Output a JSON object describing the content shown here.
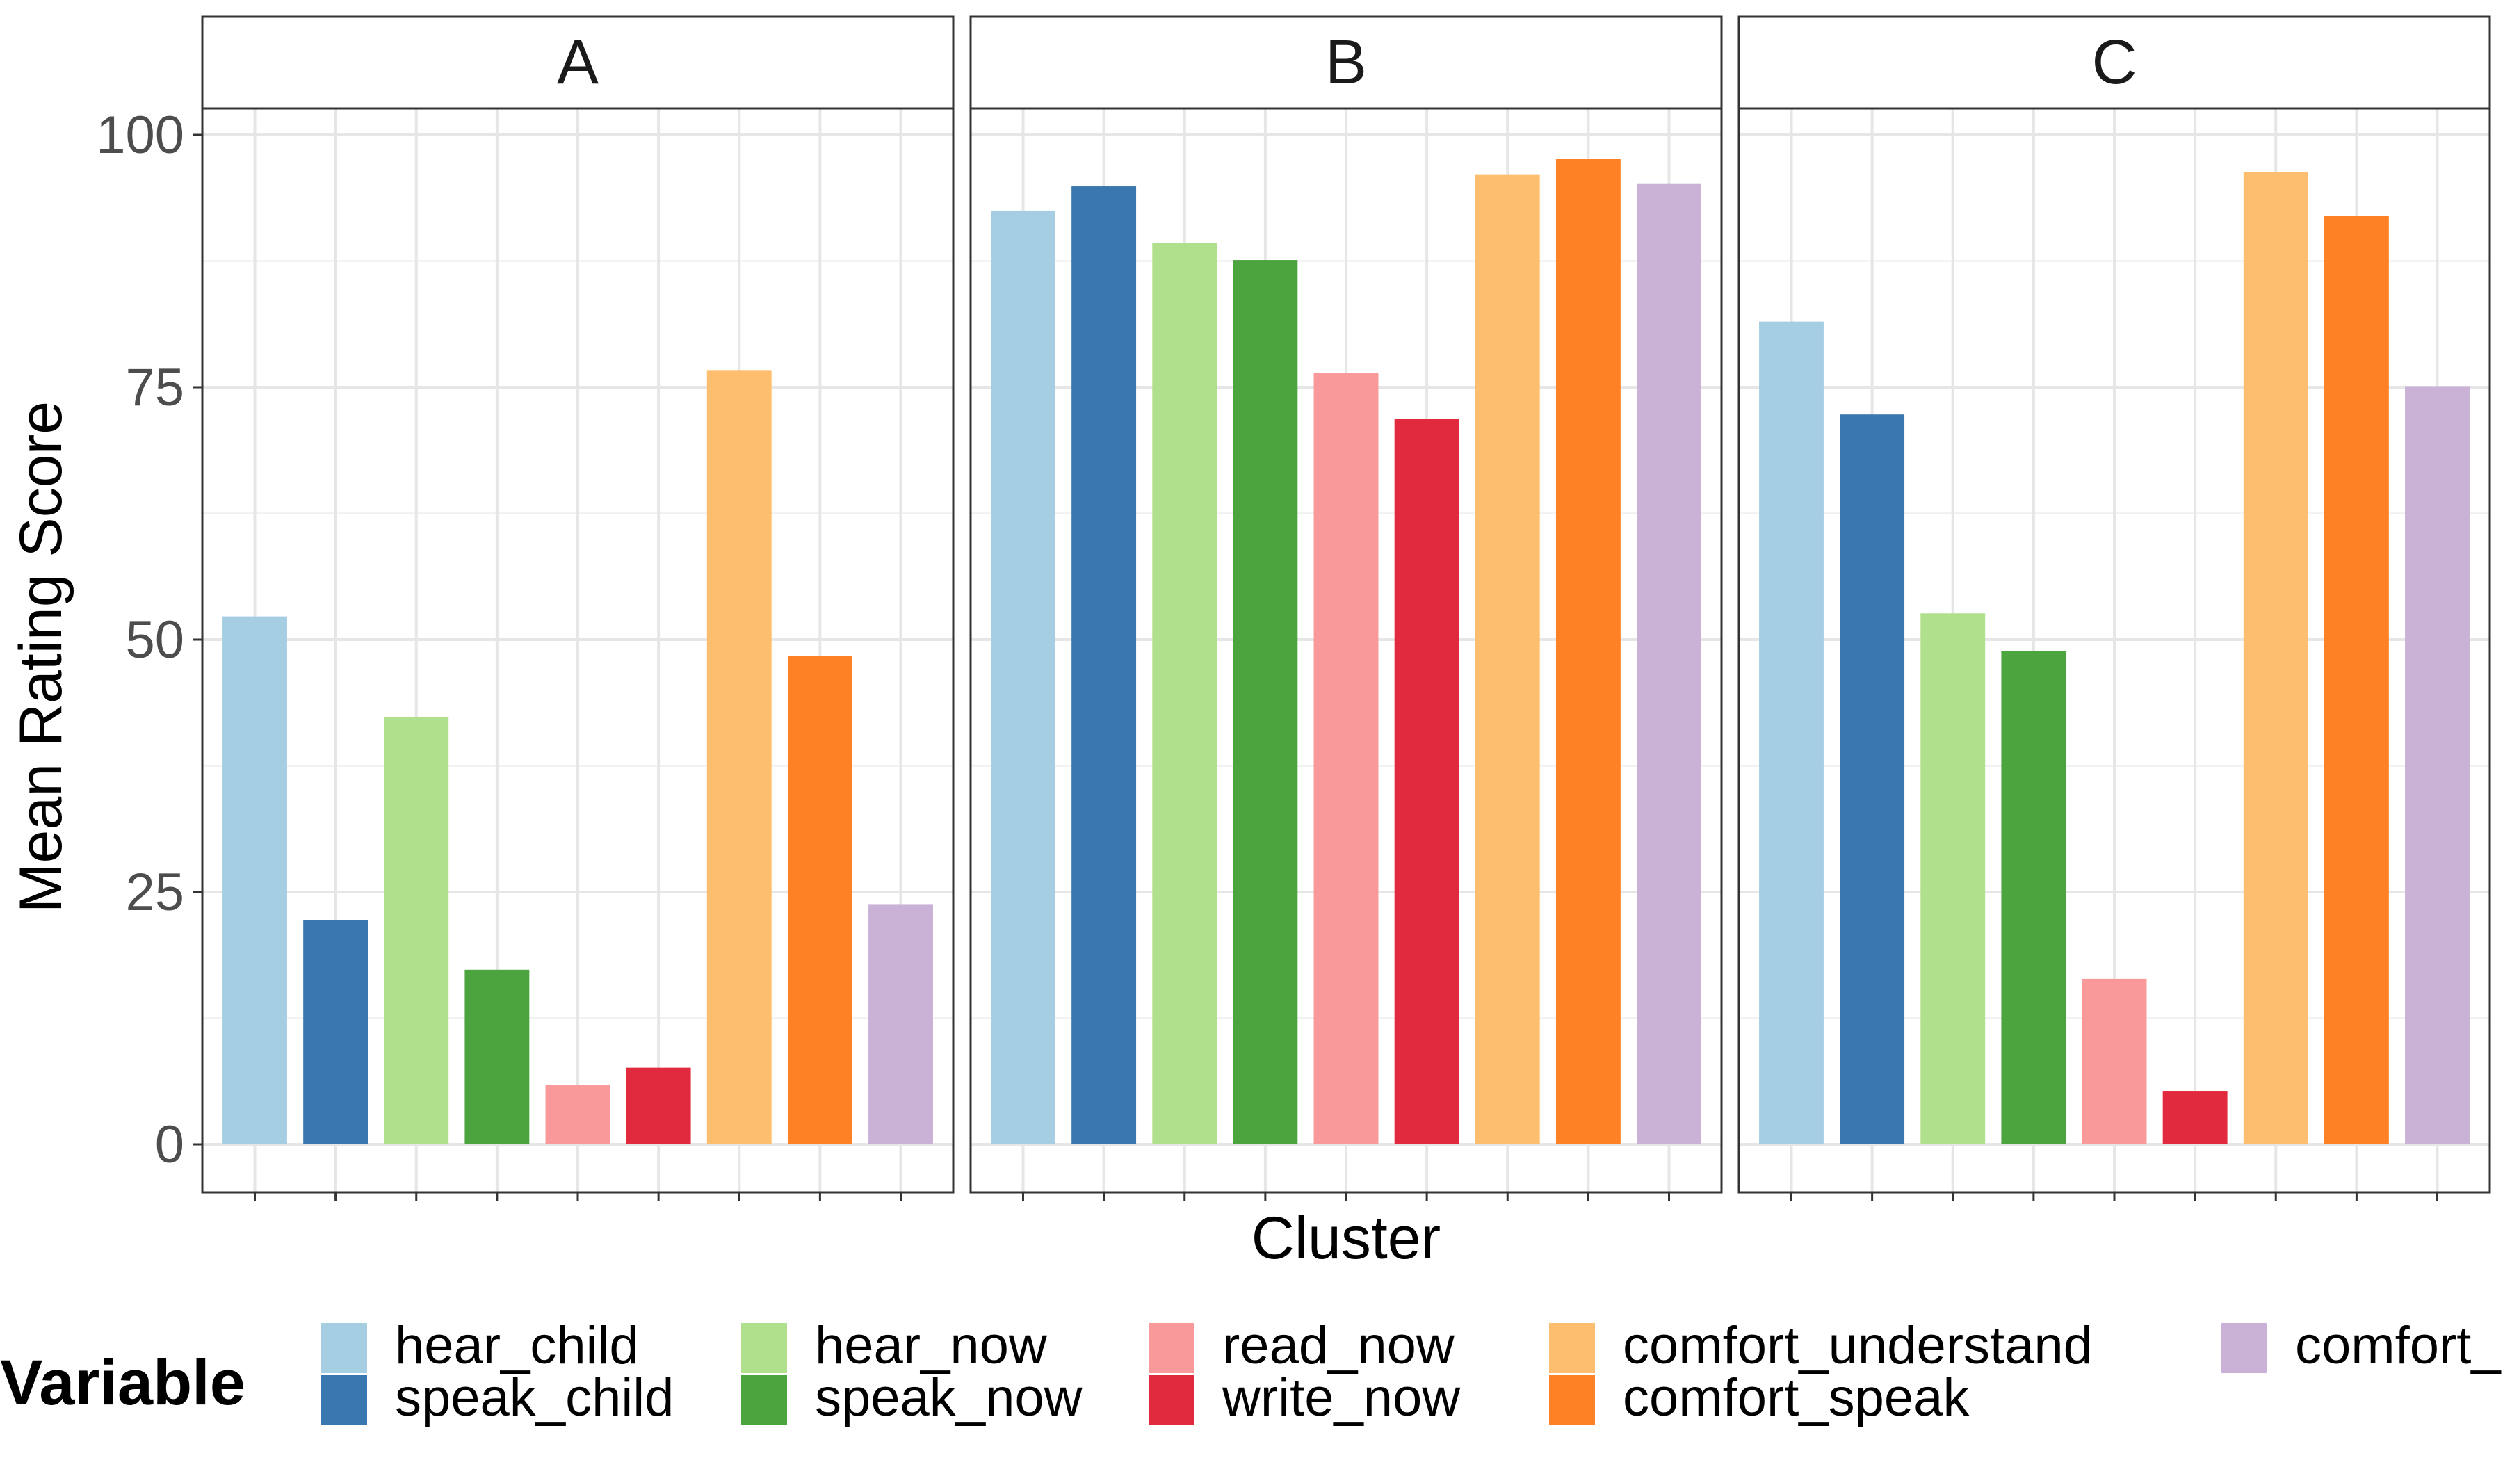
{
  "chart_data": {
    "type": "bar",
    "facets": [
      "A",
      "B",
      "C"
    ],
    "variables": [
      "hear_child",
      "speak_child",
      "hear_now",
      "speak_now",
      "read_now",
      "write_now",
      "comfort_understand",
      "comfort_speak",
      "comfort_read"
    ],
    "colors": [
      "#A6CEE3",
      "#3A77B0",
      "#B1E08D",
      "#4CA43E",
      "#F9999A",
      "#E12A3D",
      "#FDBF6F",
      "#FF8126",
      "#CAB2D6"
    ],
    "values": {
      "A": [
        52.3,
        22.2,
        42.3,
        17.3,
        5.9,
        7.6,
        76.7,
        48.4,
        23.8
      ],
      "B": [
        92.5,
        94.9,
        89.3,
        87.6,
        76.4,
        71.9,
        96.1,
        97.6,
        95.2
      ],
      "C": [
        81.5,
        72.3,
        52.6,
        48.9,
        16.4,
        5.3,
        96.3,
        92.0,
        75.1
      ]
    },
    "ylim": [
      0,
      110
    ],
    "yticks": [
      "0",
      "25",
      "50",
      "75",
      "100"
    ],
    "xlabel": "Cluster",
    "ylabel": "Mean Rating Score",
    "legend": {
      "title": "Variable",
      "position": "bottom",
      "entries": [
        "hear_child",
        "speak_child",
        "hear_now",
        "speak_now",
        "read_now",
        "write_now",
        "comfort_understand",
        "comfort_speak",
        "comfort_re"
      ]
    },
    "grid": true
  }
}
